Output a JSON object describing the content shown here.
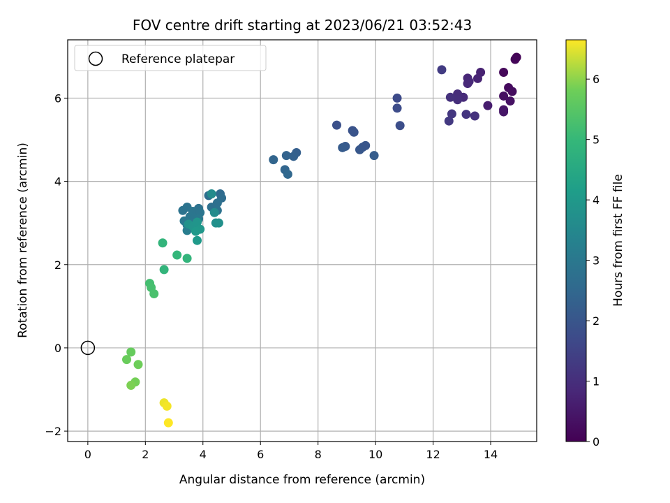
{
  "chart_data": {
    "type": "scatter",
    "title": "FOV centre drift starting at 2023/06/21 03:52:43",
    "xlabel": "Angular distance from reference (arcmin)",
    "ylabel": "Rotation from reference (arcmin)",
    "xlim": [
      -0.7,
      15.6
    ],
    "ylim": [
      -2.25,
      7.4
    ],
    "xticks": [
      0,
      2,
      4,
      6,
      8,
      10,
      12,
      14
    ],
    "yticks": [
      -2,
      0,
      2,
      4,
      6
    ],
    "grid": true,
    "legend": {
      "position": "top-left",
      "entries": [
        "Reference platepar"
      ]
    },
    "reference_point": {
      "x": 0,
      "y": 0
    },
    "colorbar": {
      "label": "Hours from first FF file",
      "colormap": "viridis",
      "range": [
        0,
        6.65
      ],
      "ticks": [
        0,
        1,
        2,
        3,
        4,
        5,
        6
      ]
    },
    "points": [
      {
        "x": 14.9,
        "y": 6.98,
        "c": 0.05
      },
      {
        "x": 14.85,
        "y": 6.93,
        "c": 0.1
      },
      {
        "x": 14.45,
        "y": 6.62,
        "c": 0.15
      },
      {
        "x": 14.62,
        "y": 6.25,
        "c": 0.2
      },
      {
        "x": 14.75,
        "y": 6.16,
        "c": 0.25
      },
      {
        "x": 14.45,
        "y": 6.05,
        "c": 0.3
      },
      {
        "x": 14.68,
        "y": 5.93,
        "c": 0.35
      },
      {
        "x": 14.45,
        "y": 5.72,
        "c": 0.4
      },
      {
        "x": 14.45,
        "y": 5.67,
        "c": 0.45
      },
      {
        "x": 13.9,
        "y": 5.82,
        "c": 0.6
      },
      {
        "x": 13.65,
        "y": 6.62,
        "c": 0.7
      },
      {
        "x": 13.55,
        "y": 6.47,
        "c": 0.75
      },
      {
        "x": 13.2,
        "y": 6.48,
        "c": 0.8
      },
      {
        "x": 13.2,
        "y": 6.35,
        "c": 0.85
      },
      {
        "x": 13.25,
        "y": 6.4,
        "c": 0.85
      },
      {
        "x": 13.05,
        "y": 6.02,
        "c": 0.9
      },
      {
        "x": 12.85,
        "y": 6.1,
        "c": 0.95
      },
      {
        "x": 12.85,
        "y": 5.96,
        "c": 1.0
      },
      {
        "x": 12.6,
        "y": 6.02,
        "c": 1.05
      },
      {
        "x": 13.45,
        "y": 5.57,
        "c": 1.1
      },
      {
        "x": 13.15,
        "y": 5.61,
        "c": 1.15
      },
      {
        "x": 12.65,
        "y": 5.62,
        "c": 1.2
      },
      {
        "x": 12.55,
        "y": 5.45,
        "c": 1.25
      },
      {
        "x": 12.3,
        "y": 6.68,
        "c": 1.3
      },
      {
        "x": 10.75,
        "y": 6.0,
        "c": 1.7
      },
      {
        "x": 10.75,
        "y": 5.76,
        "c": 1.75
      },
      {
        "x": 10.85,
        "y": 5.34,
        "c": 1.8
      },
      {
        "x": 8.65,
        "y": 5.35,
        "c": 1.85
      },
      {
        "x": 9.2,
        "y": 5.22,
        "c": 1.9
      },
      {
        "x": 9.25,
        "y": 5.18,
        "c": 1.95
      },
      {
        "x": 9.65,
        "y": 4.86,
        "c": 2.0
      },
      {
        "x": 9.55,
        "y": 4.82,
        "c": 2.0
      },
      {
        "x": 9.45,
        "y": 4.76,
        "c": 2.05
      },
      {
        "x": 8.95,
        "y": 4.84,
        "c": 2.1
      },
      {
        "x": 8.85,
        "y": 4.81,
        "c": 2.15
      },
      {
        "x": 9.95,
        "y": 4.62,
        "c": 2.2
      },
      {
        "x": 7.25,
        "y": 4.69,
        "c": 2.25
      },
      {
        "x": 7.15,
        "y": 4.6,
        "c": 2.3
      },
      {
        "x": 6.9,
        "y": 4.62,
        "c": 2.35
      },
      {
        "x": 6.45,
        "y": 4.52,
        "c": 2.4
      },
      {
        "x": 6.85,
        "y": 4.28,
        "c": 2.45
      },
      {
        "x": 6.95,
        "y": 4.17,
        "c": 2.5
      },
      {
        "x": 4.6,
        "y": 3.7,
        "c": 2.6
      },
      {
        "x": 4.65,
        "y": 3.6,
        "c": 2.65
      },
      {
        "x": 4.2,
        "y": 3.66,
        "c": 2.7
      },
      {
        "x": 4.5,
        "y": 3.48,
        "c": 2.75
      },
      {
        "x": 4.3,
        "y": 3.38,
        "c": 2.75
      },
      {
        "x": 4.5,
        "y": 3.3,
        "c": 2.8
      },
      {
        "x": 3.85,
        "y": 3.35,
        "c": 2.8
      },
      {
        "x": 3.3,
        "y": 3.3,
        "c": 2.85
      },
      {
        "x": 3.45,
        "y": 3.38,
        "c": 2.85
      },
      {
        "x": 3.65,
        "y": 3.28,
        "c": 2.9
      },
      {
        "x": 3.9,
        "y": 3.25,
        "c": 2.9
      },
      {
        "x": 3.55,
        "y": 3.15,
        "c": 2.95
      },
      {
        "x": 3.7,
        "y": 3.12,
        "c": 2.95
      },
      {
        "x": 3.85,
        "y": 3.1,
        "c": 3.0
      },
      {
        "x": 3.35,
        "y": 3.05,
        "c": 3.0
      },
      {
        "x": 3.6,
        "y": 3.0,
        "c": 3.05
      },
      {
        "x": 3.45,
        "y": 2.95,
        "c": 3.1
      },
      {
        "x": 3.45,
        "y": 2.82,
        "c": 3.15
      },
      {
        "x": 4.3,
        "y": 3.7,
        "c": 3.6
      },
      {
        "x": 4.4,
        "y": 3.25,
        "c": 3.6
      },
      {
        "x": 4.45,
        "y": 3.0,
        "c": 3.7
      },
      {
        "x": 4.55,
        "y": 3.0,
        "c": 3.75
      },
      {
        "x": 3.5,
        "y": 2.97,
        "c": 3.8
      },
      {
        "x": 3.65,
        "y": 2.92,
        "c": 3.85
      },
      {
        "x": 3.8,
        "y": 3.02,
        "c": 3.9
      },
      {
        "x": 3.9,
        "y": 2.85,
        "c": 3.95
      },
      {
        "x": 3.75,
        "y": 2.8,
        "c": 4.0
      },
      {
        "x": 3.8,
        "y": 2.58,
        "c": 4.05
      },
      {
        "x": 2.6,
        "y": 2.52,
        "c": 4.9
      },
      {
        "x": 3.1,
        "y": 2.23,
        "c": 4.95
      },
      {
        "x": 3.45,
        "y": 2.15,
        "c": 4.9
      },
      {
        "x": 2.65,
        "y": 1.88,
        "c": 4.9
      },
      {
        "x": 2.15,
        "y": 1.55,
        "c": 5.2
      },
      {
        "x": 2.2,
        "y": 1.45,
        "c": 5.25
      },
      {
        "x": 2.3,
        "y": 1.3,
        "c": 5.3
      },
      {
        "x": 1.5,
        "y": -0.1,
        "c": 5.7
      },
      {
        "x": 1.35,
        "y": -0.28,
        "c": 5.75
      },
      {
        "x": 1.75,
        "y": -0.4,
        "c": 5.8
      },
      {
        "x": 1.65,
        "y": -0.82,
        "c": 5.85
      },
      {
        "x": 1.5,
        "y": -0.9,
        "c": 5.9
      },
      {
        "x": 2.65,
        "y": -1.32,
        "c": 6.55
      },
      {
        "x": 2.75,
        "y": -1.4,
        "c": 6.6
      },
      {
        "x": 2.8,
        "y": -1.8,
        "c": 6.65
      }
    ]
  }
}
